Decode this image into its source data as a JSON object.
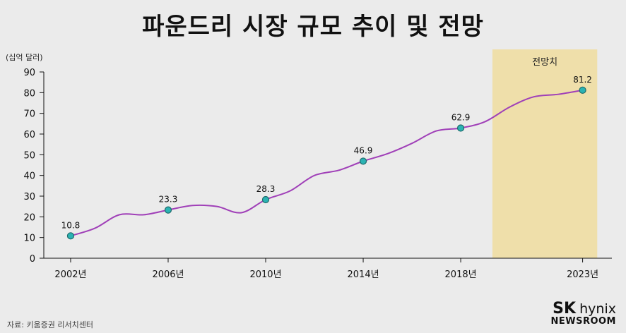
{
  "title": "파운드리 시장 규모 추이 및 전망",
  "unit_label": "(십억 달러)",
  "source": "자료: 키움증권 리서치센터",
  "brand": {
    "sk": "SK",
    "hynix": "hynix",
    "newsroom": "NEWSROOM"
  },
  "colors": {
    "background": "#ebebeb",
    "line": "#a040b8",
    "marker": "#2bb3b3",
    "marker_stroke": "#1e6a6a",
    "forecast": "#efdfaa"
  },
  "chart_data": {
    "type": "line",
    "title": "파운드리 시장 규모 추이 및 전망",
    "ylabel": "(십억 달러)",
    "ylim": [
      0,
      90
    ],
    "yticks": [
      0,
      10,
      20,
      30,
      40,
      50,
      60,
      70,
      80,
      90
    ],
    "xlim": [
      2000.9,
      2024.2
    ],
    "xticks": [
      {
        "x": 2002,
        "label": "2002년"
      },
      {
        "x": 2006,
        "label": "2006년"
      },
      {
        "x": 2010,
        "label": "2010년"
      },
      {
        "x": 2014,
        "label": "2014년"
      },
      {
        "x": 2018,
        "label": "2018년"
      },
      {
        "x": 2023,
        "label": "2023년"
      }
    ],
    "forecast": {
      "from": 2019.3,
      "to": 2023.6,
      "label": "전망치"
    },
    "series": [
      {
        "values": [
          {
            "x": 2002,
            "y": 10.8
          },
          {
            "x": 2003,
            "y": 14.5
          },
          {
            "x": 2004,
            "y": 21
          },
          {
            "x": 2005,
            "y": 21
          },
          {
            "x": 2006,
            "y": 23.3
          },
          {
            "x": 2007,
            "y": 25.5
          },
          {
            "x": 2008,
            "y": 25
          },
          {
            "x": 2009,
            "y": 22
          },
          {
            "x": 2010,
            "y": 28.3
          },
          {
            "x": 2011,
            "y": 32.5
          },
          {
            "x": 2012,
            "y": 40
          },
          {
            "x": 2013,
            "y": 42.5
          },
          {
            "x": 2014,
            "y": 46.9
          },
          {
            "x": 2015,
            "y": 50.5
          },
          {
            "x": 2016,
            "y": 55.5
          },
          {
            "x": 2017,
            "y": 61.5
          },
          {
            "x": 2018,
            "y": 62.9
          },
          {
            "x": 2019,
            "y": 66
          },
          {
            "x": 2020,
            "y": 73
          },
          {
            "x": 2021,
            "y": 78
          },
          {
            "x": 2022,
            "y": 79.2
          },
          {
            "x": 2023,
            "y": 81.2
          }
        ]
      }
    ],
    "labeled_points": [
      {
        "x": 2002,
        "y": 10.8,
        "label": "10.8"
      },
      {
        "x": 2006,
        "y": 23.3,
        "label": "23.3"
      },
      {
        "x": 2010,
        "y": 28.3,
        "label": "28.3"
      },
      {
        "x": 2014,
        "y": 46.9,
        "label": "46.9"
      },
      {
        "x": 2018,
        "y": 62.9,
        "label": "62.9"
      },
      {
        "x": 2023,
        "y": 81.2,
        "label": "81.2"
      }
    ]
  }
}
